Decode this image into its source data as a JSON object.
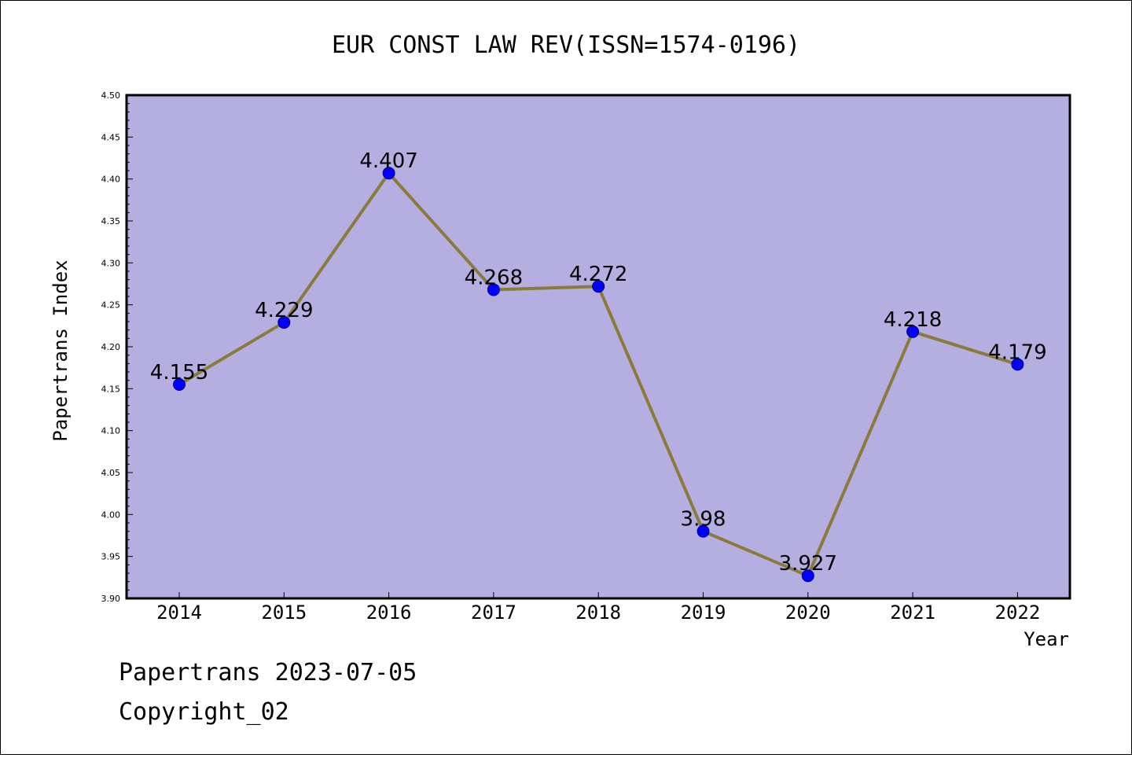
{
  "chart_data": {
    "type": "line",
    "title": "EUR CONST LAW REV(ISSN=1574-0196)",
    "xlabel": "Year",
    "ylabel": "Papertrans Index",
    "categories": [
      "2014",
      "2015",
      "2016",
      "2017",
      "2018",
      "2019",
      "2020",
      "2021",
      "2022"
    ],
    "series": [
      {
        "values": [
          4.155,
          4.229,
          4.407,
          4.268,
          4.272,
          3.98,
          3.927,
          4.218,
          4.179
        ],
        "labels": [
          "4.155",
          "4.229",
          "4.407",
          "4.268",
          "4.272",
          "3.98",
          "3.927",
          "4.218",
          "4.179"
        ]
      }
    ],
    "ylim": [
      3.9,
      4.5
    ],
    "yticks": [
      "3.90",
      "3.95",
      "4.00",
      "4.05",
      "4.10",
      "4.15",
      "4.20",
      "4.25",
      "4.30",
      "4.35",
      "4.40",
      "4.45",
      "4.50"
    ],
    "grid": false,
    "legend": "none",
    "colors": {
      "plot_background": "#b5aee1",
      "line": "#8b7a3a",
      "marker": "#0000ff",
      "marker_edge": "#00008b"
    }
  },
  "footer": {
    "line1": "Papertrans 2023-07-05",
    "line2": "Copyright_02"
  }
}
